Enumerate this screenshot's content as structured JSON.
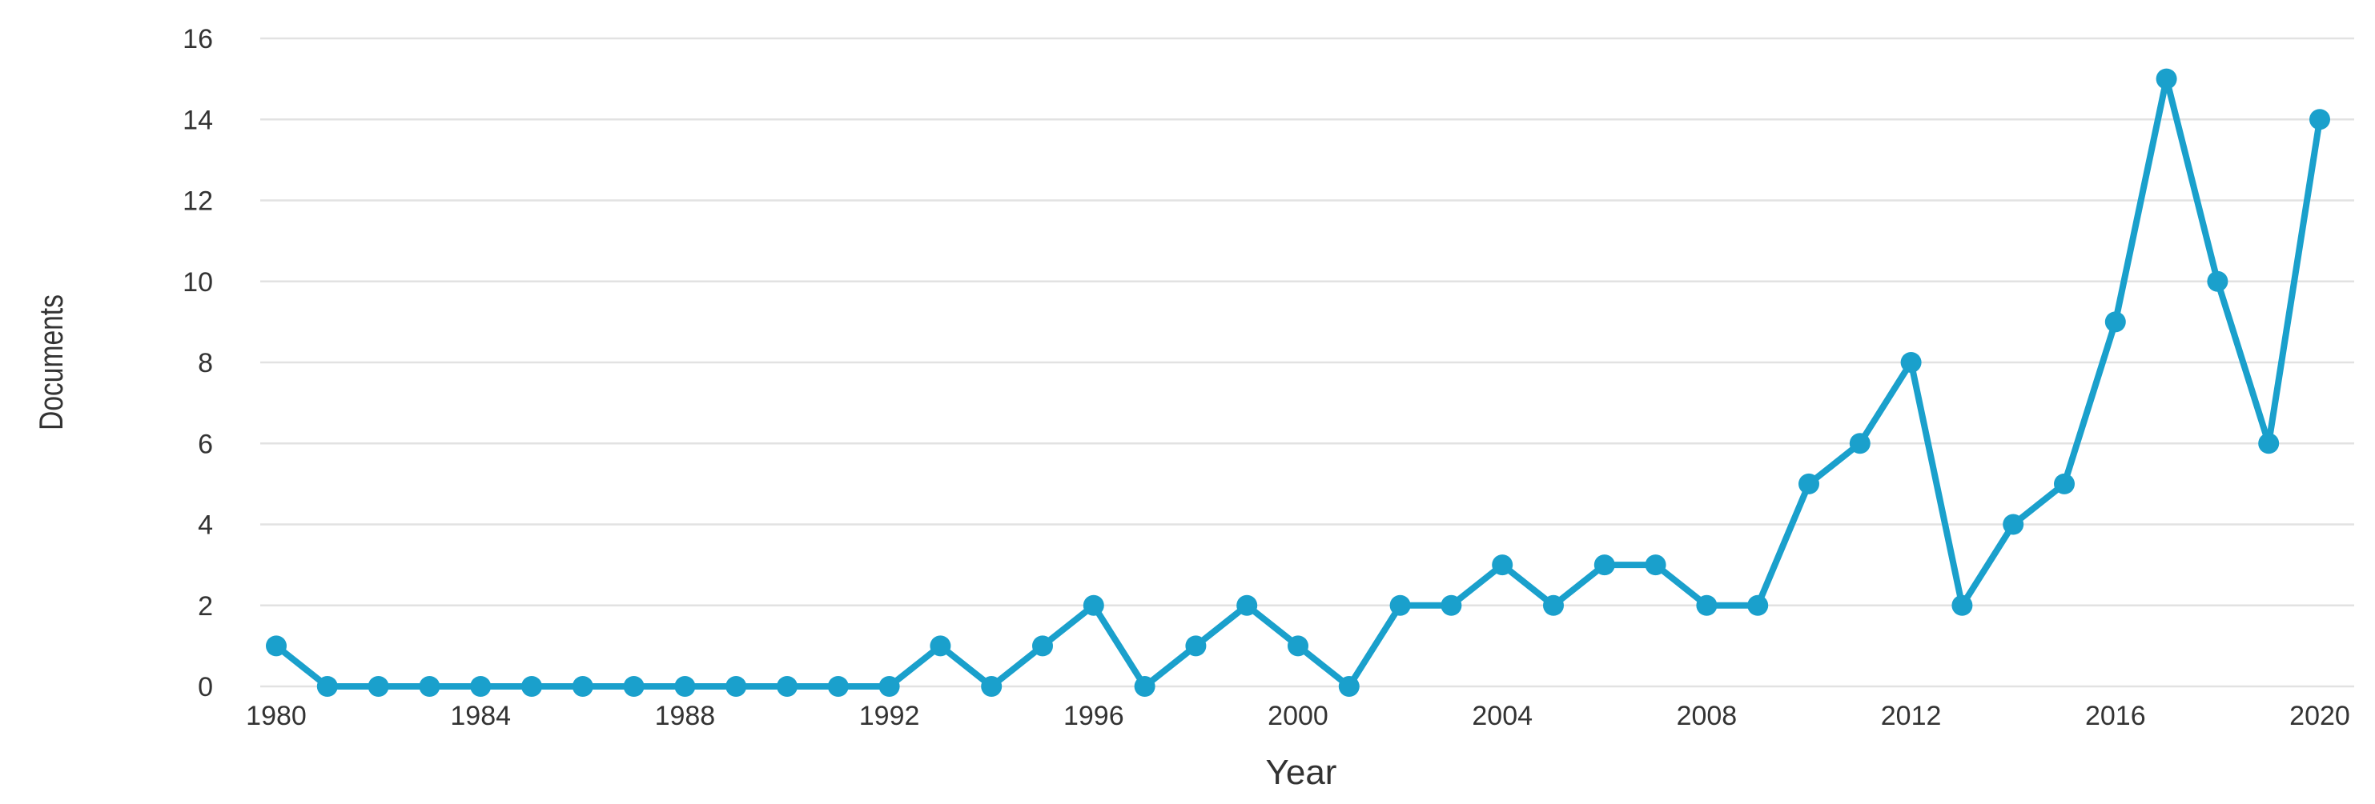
{
  "chart_data": {
    "type": "line",
    "title": "",
    "xlabel": "Year",
    "ylabel": "Documents",
    "xlim": [
      1980,
      2020
    ],
    "ylim": [
      0,
      16
    ],
    "y_ticks": [
      "0",
      "2",
      "4",
      "6",
      "8",
      "10",
      "12",
      "14",
      "16"
    ],
    "x_ticks": [
      "1980",
      "1984",
      "1988",
      "1992",
      "1996",
      "2000",
      "2004",
      "2008",
      "2012",
      "2016",
      "2020"
    ],
    "grid": true,
    "legend": "none",
    "color": "#1aa0cc",
    "x": [
      1980,
      1981,
      1982,
      1983,
      1984,
      1985,
      1986,
      1987,
      1988,
      1989,
      1990,
      1991,
      1992,
      1993,
      1994,
      1995,
      1996,
      1997,
      1998,
      1999,
      2000,
      2001,
      2002,
      2003,
      2004,
      2005,
      2006,
      2007,
      2008,
      2009,
      2010,
      2011,
      2012,
      2013,
      2014,
      2015,
      2016,
      2017,
      2018,
      2019,
      2020
    ],
    "series": [
      {
        "values": [
          1,
          0,
          0,
          0,
          0,
          0,
          0,
          0,
          0,
          0,
          0,
          0,
          0,
          1,
          0,
          1,
          2,
          0,
          1,
          2,
          1,
          0,
          2,
          2,
          3,
          2,
          3,
          3,
          2,
          2,
          5,
          6,
          8,
          2,
          4,
          5,
          9,
          15,
          10,
          6,
          14
        ]
      }
    ]
  }
}
